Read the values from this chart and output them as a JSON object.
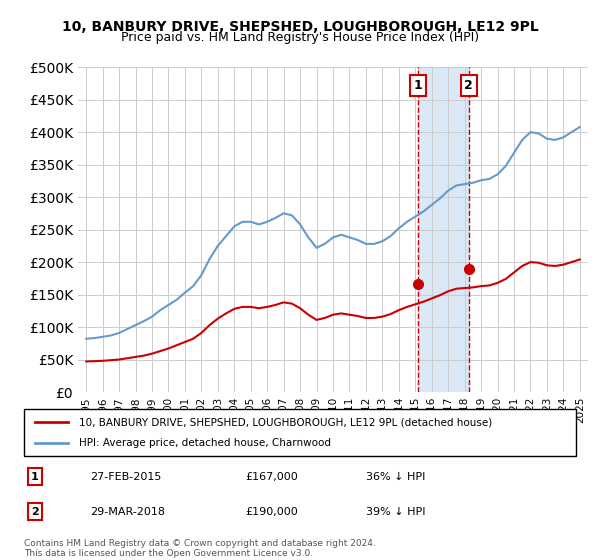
{
  "title": "10, BANBURY DRIVE, SHEPSHED, LOUGHBOROUGH, LE12 9PL",
  "subtitle": "Price paid vs. HM Land Registry's House Price Index (HPI)",
  "red_label": "10, BANBURY DRIVE, SHEPSHED, LOUGHBOROUGH, LE12 9PL (detached house)",
  "blue_label": "HPI: Average price, detached house, Charnwood",
  "footer": "Contains HM Land Registry data © Crown copyright and database right 2024.\nThis data is licensed under the Open Government Licence v3.0.",
  "sale1_label": "1",
  "sale1_date": "27-FEB-2015",
  "sale1_price": "£167,000",
  "sale1_hpi": "36% ↓ HPI",
  "sale2_label": "2",
  "sale2_date": "29-MAR-2018",
  "sale2_price": "£190,000",
  "sale2_hpi": "39% ↓ HPI",
  "sale1_x": 2015.15,
  "sale1_y": 167000,
  "sale2_x": 2018.25,
  "sale2_y": 190000,
  "shade_x1": 2015.15,
  "shade_x2": 2018.25,
  "ylim": [
    0,
    500000
  ],
  "xlim": [
    1994.5,
    2025.5
  ],
  "hpi_color": "#6699cc",
  "price_color": "#cc0000",
  "shade_color": "#cce0f5",
  "marker1_color": "#cc0000",
  "marker2_color": "#cc0000",
  "hpi_data": {
    "years": [
      1995,
      1995.5,
      1996,
      1996.5,
      1997,
      1997.5,
      1998,
      1998.5,
      1999,
      1999.5,
      2000,
      2000.5,
      2001,
      2001.5,
      2002,
      2002.5,
      2003,
      2003.5,
      2004,
      2004.5,
      2005,
      2005.5,
      2006,
      2006.5,
      2007,
      2007.5,
      2008,
      2008.5,
      2009,
      2009.5,
      2010,
      2010.5,
      2011,
      2011.5,
      2012,
      2012.5,
      2013,
      2013.5,
      2014,
      2014.5,
      2015,
      2015.5,
      2016,
      2016.5,
      2017,
      2017.5,
      2018,
      2018.5,
      2019,
      2019.5,
      2020,
      2020.5,
      2021,
      2021.5,
      2022,
      2022.5,
      2023,
      2023.5,
      2024,
      2024.5,
      2025
    ],
    "values": [
      82000,
      83000,
      85000,
      87000,
      91000,
      97000,
      103000,
      109000,
      116000,
      126000,
      134000,
      142000,
      153000,
      163000,
      180000,
      205000,
      225000,
      240000,
      255000,
      262000,
      262000,
      258000,
      262000,
      268000,
      275000,
      272000,
      258000,
      238000,
      222000,
      228000,
      238000,
      242000,
      238000,
      234000,
      228000,
      228000,
      232000,
      240000,
      252000,
      262000,
      270000,
      278000,
      288000,
      298000,
      310000,
      318000,
      320000,
      322000,
      326000,
      328000,
      335000,
      348000,
      368000,
      388000,
      400000,
      398000,
      390000,
      388000,
      392000,
      400000,
      408000
    ]
  },
  "price_data": {
    "years": [
      1995,
      1995.5,
      1996,
      1996.5,
      1997,
      1997.5,
      1998,
      1998.5,
      1999,
      1999.5,
      2000,
      2000.5,
      2001,
      2001.5,
      2002,
      2002.5,
      2003,
      2003.5,
      2004,
      2004.5,
      2005,
      2005.5,
      2006,
      2006.5,
      2007,
      2007.5,
      2008,
      2008.5,
      2009,
      2009.5,
      2010,
      2010.5,
      2011,
      2011.5,
      2012,
      2012.5,
      2013,
      2013.5,
      2014,
      2014.5,
      2015,
      2015.5,
      2016,
      2016.5,
      2017,
      2017.5,
      2018,
      2018.5,
      2019,
      2019.5,
      2020,
      2020.5,
      2021,
      2021.5,
      2022,
      2022.5,
      2023,
      2023.5,
      2024,
      2024.5,
      2025
    ],
    "values": [
      47000,
      47500,
      48000,
      49000,
      50000,
      52000,
      54000,
      56000,
      59000,
      63000,
      67000,
      72000,
      77000,
      82000,
      91000,
      103000,
      113000,
      121000,
      128000,
      131000,
      131000,
      129000,
      131000,
      134000,
      138000,
      136000,
      129000,
      119000,
      111000,
      114000,
      119000,
      121000,
      119000,
      117000,
      114000,
      114000,
      116000,
      120000,
      126000,
      131000,
      135000,
      139000,
      144000,
      149000,
      155000,
      159000,
      160000,
      161000,
      163000,
      164000,
      168000,
      174000,
      184000,
      194000,
      200000,
      199000,
      195000,
      194000,
      196000,
      200000,
      204000
    ]
  }
}
